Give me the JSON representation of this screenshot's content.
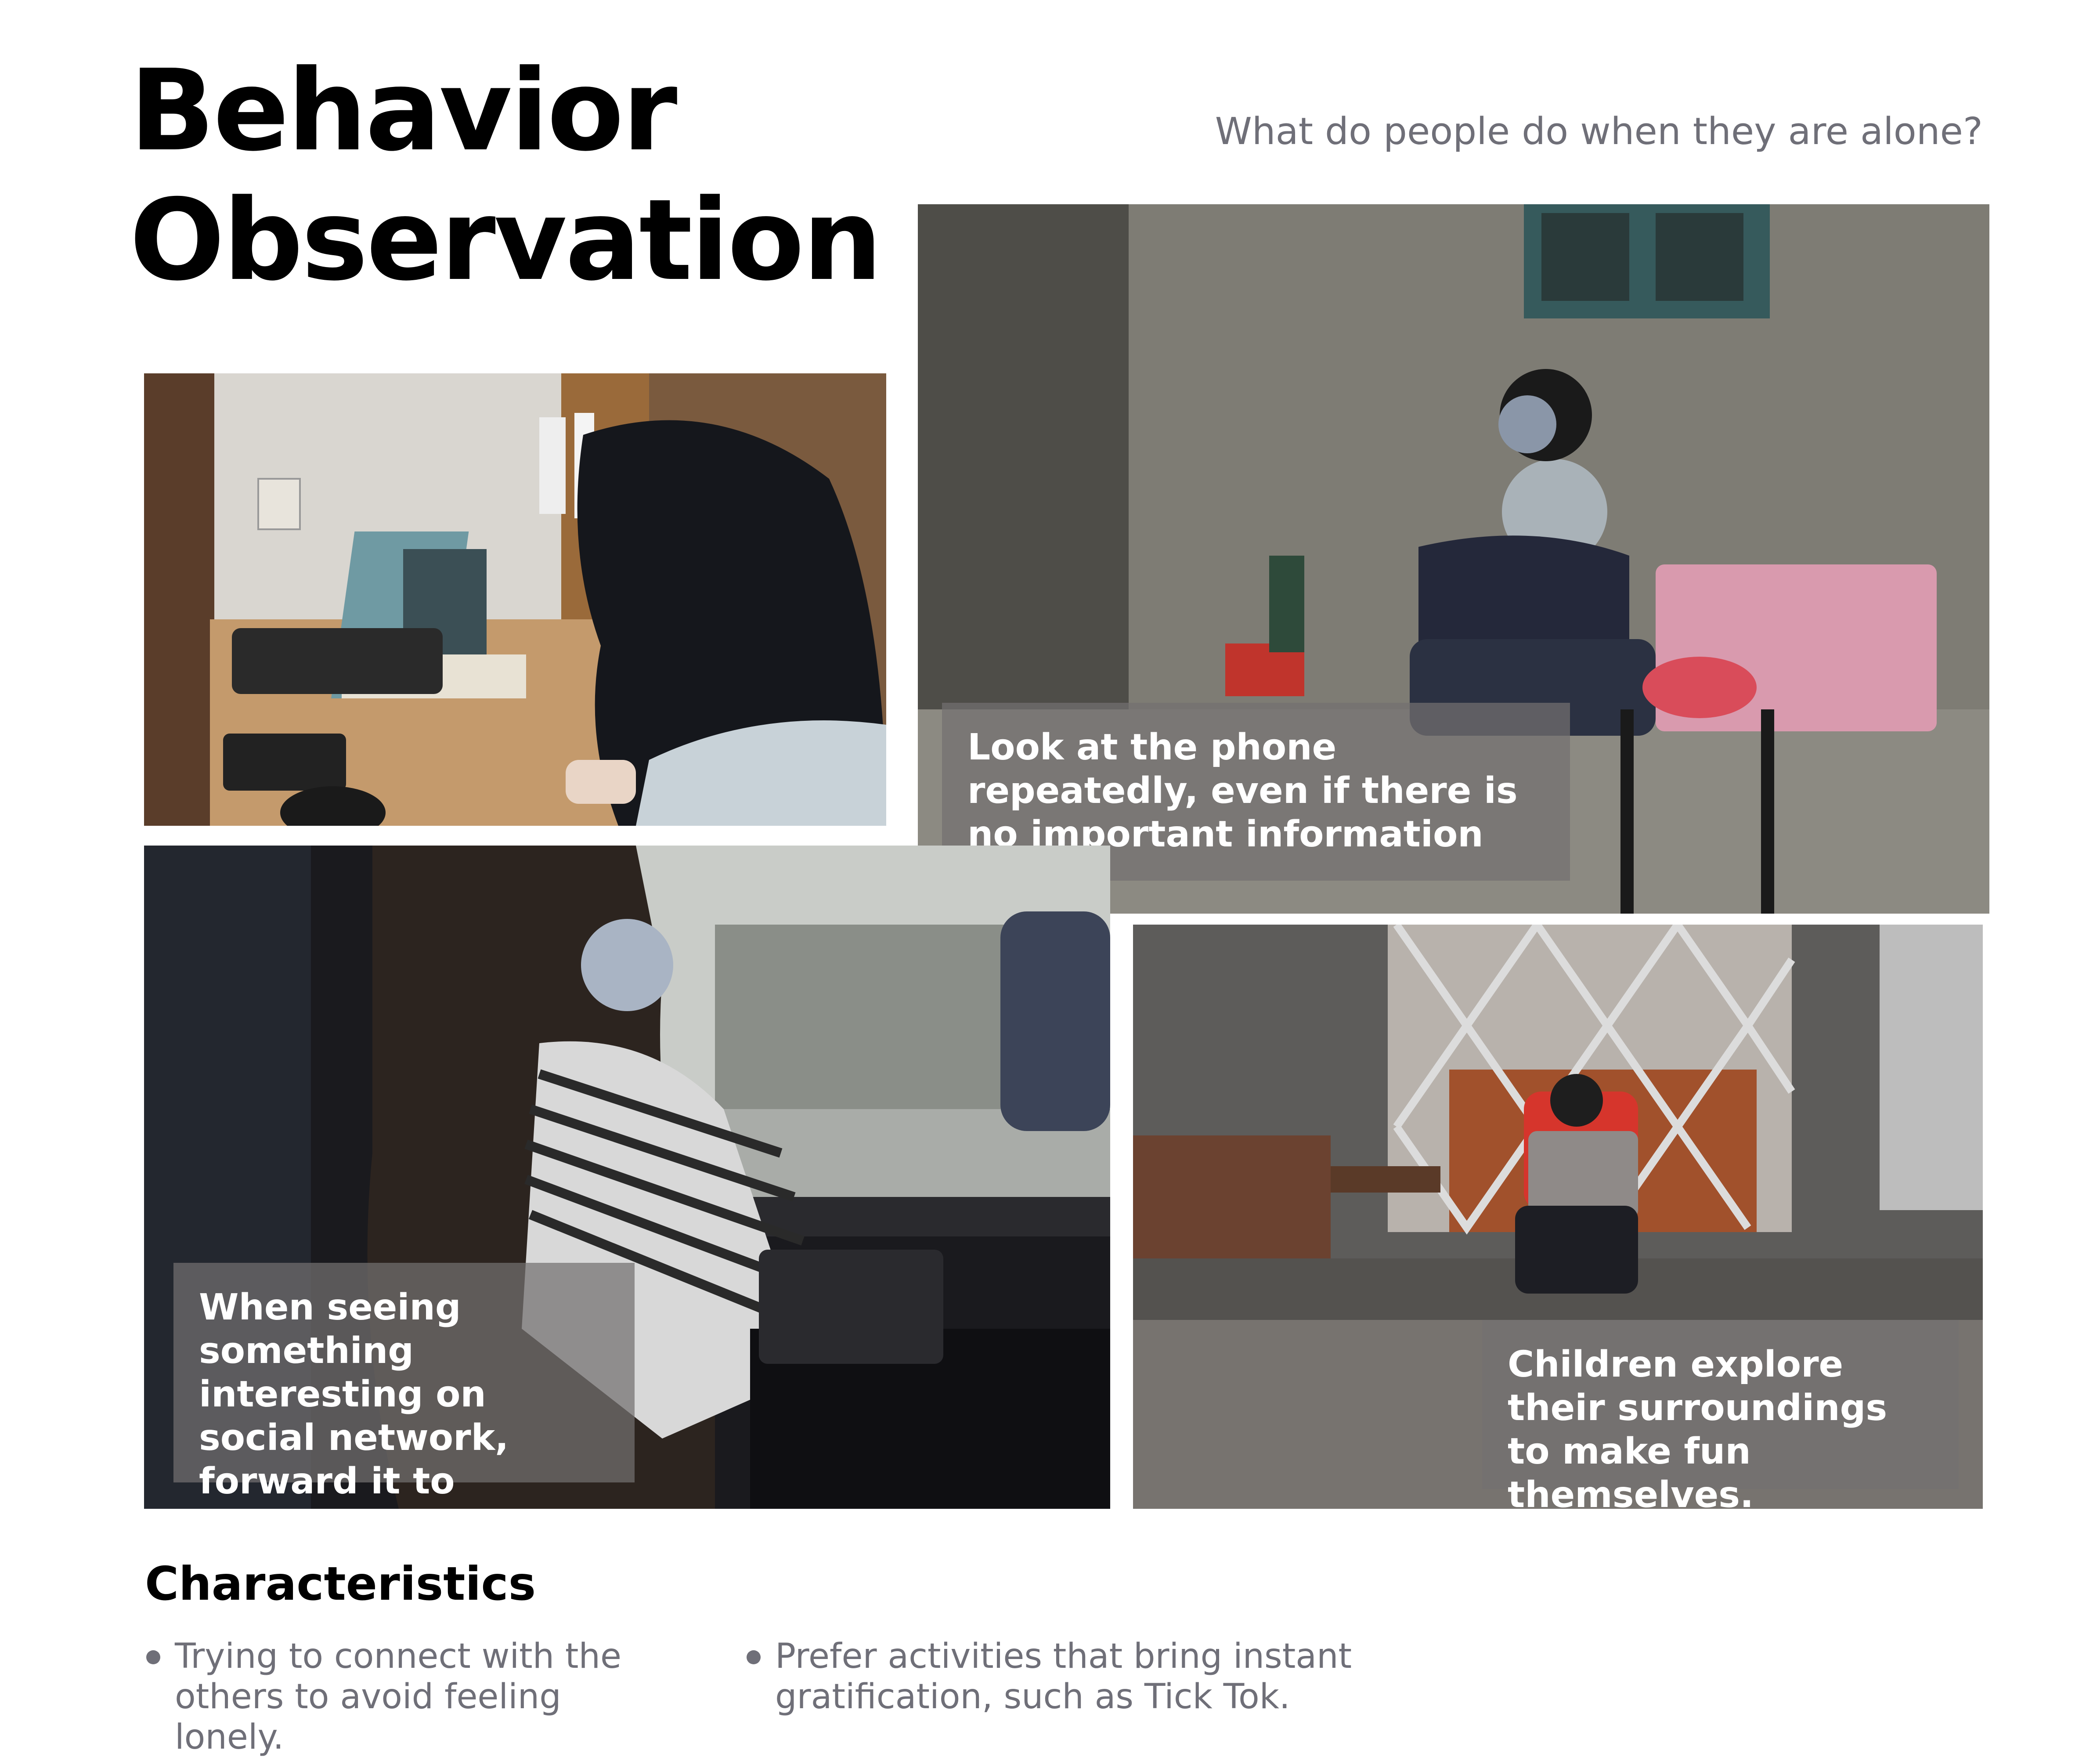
{
  "page": {
    "title_line1": "Behavior",
    "title_line2": "Observation",
    "subtitle": "What do people do when they are alone?"
  },
  "photos": [
    {
      "scene": "girl-at-desk-with-phone"
    },
    {
      "scene": "man-on-street-with-phone",
      "caption": "Look at the phone repeatedly, even if there is no important information"
    },
    {
      "scene": "girl-on-bus-with-phone",
      "caption": "When seeing something interesting on social network, forward it to friends immediately"
    },
    {
      "scene": "child-exploring-gate",
      "caption": "Children explore their surroundings to make fun themselves."
    }
  ],
  "characteristics": {
    "heading": "Characteristics",
    "items": [
      "Trying to connect with the others to avoid feeling lonely.",
      "Prefer activities that bring instant gratification, such as Tick Tok."
    ]
  },
  "colors": {
    "caption_overlay": "#737070",
    "face_blur": "#a9b4c4",
    "muted_text": "#6f6f78"
  }
}
